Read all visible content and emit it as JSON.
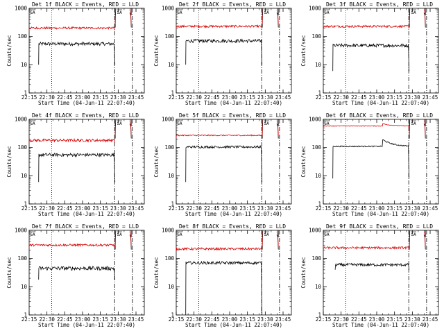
{
  "common": {
    "xlabel": "Start Time (04-Jun-11 22:07:40)",
    "ylabel": "Counts/sec",
    "xticks": [
      "22:15",
      "22:30",
      "22:45",
      "23:00",
      "23:15",
      "23:30",
      "23:45"
    ],
    "yticks": [
      "1",
      "10",
      "100",
      "1000"
    ],
    "marker_label": "SA",
    "colors": {
      "events": "#000000",
      "lld": "#d40000",
      "axes": "#000000"
    }
  },
  "chart_data": [
    {
      "type": "line",
      "title": "Det 1f BLACK = Events, RED = LLD",
      "x_range_min": [
        8,
        105
      ],
      "ylim": [
        1,
        1000
      ],
      "yscale": "log",
      "dotted_x_min": 27,
      "dashed_x_min": [
        80,
        95
      ],
      "solid_x_min": [
        80.5,
        94
      ],
      "series": [
        {
          "name": "Events",
          "start_min": 16,
          "end_min": 80,
          "level": 55,
          "drop": 10,
          "noise": 0.06
        },
        {
          "name": "LLD",
          "start_min": 8,
          "end_min": 80,
          "level": 200,
          "drop": 170,
          "noise": 0.04
        }
      ]
    },
    {
      "type": "line",
      "title": "Det 2f BLACK = Events, RED = LLD",
      "x_range_min": [
        8,
        105
      ],
      "ylim": [
        1,
        1000
      ],
      "yscale": "log",
      "dotted_x_min": 27,
      "dashed_x_min": [
        80,
        95
      ],
      "solid_x_min": [
        80.5,
        94
      ],
      "series": [
        {
          "name": "Events",
          "start_min": 16,
          "end_min": 80,
          "level": 70,
          "drop": 10,
          "noise": 0.06
        },
        {
          "name": "LLD",
          "start_min": 8,
          "end_min": 80,
          "level": 230,
          "drop": 190,
          "noise": 0.04
        }
      ]
    },
    {
      "type": "line",
      "title": "Det 3f BLACK = Events, RED = LLD",
      "x_range_min": [
        8,
        105
      ],
      "ylim": [
        1,
        1000
      ],
      "yscale": "log",
      "dotted_x_min": 27,
      "dashed_x_min": [
        80,
        95
      ],
      "solid_x_min": [
        80.5,
        94
      ],
      "series": [
        {
          "name": "Events",
          "start_min": 16,
          "end_min": 80,
          "level": 48,
          "drop": 6,
          "noise": 0.06
        },
        {
          "name": "LLD",
          "start_min": 8,
          "end_min": 80,
          "level": 230,
          "drop": 190,
          "noise": 0.04
        }
      ]
    },
    {
      "type": "line",
      "title": "Det 4f BLACK = Events, RED = LLD",
      "x_range_min": [
        8,
        105
      ],
      "ylim": [
        1,
        1000
      ],
      "yscale": "log",
      "dotted_x_min": 27,
      "dashed_x_min": [
        80,
        95
      ],
      "solid_x_min": [
        80.5,
        94
      ],
      "series": [
        {
          "name": "Events",
          "start_min": 16,
          "end_min": 80,
          "level": 55,
          "drop": 6,
          "noise": 0.06
        },
        {
          "name": "LLD",
          "start_min": 8,
          "end_min": 80,
          "level": 180,
          "drop": 150,
          "noise": 0.05
        }
      ]
    },
    {
      "type": "line",
      "title": "Det 5f BLACK = Events, RED = LLD",
      "x_range_min": [
        8,
        105
      ],
      "ylim": [
        1,
        1000
      ],
      "yscale": "log",
      "dotted_x_min": 27,
      "dashed_x_min": [
        80,
        95
      ],
      "solid_x_min": [
        80.5,
        94
      ],
      "series": [
        {
          "name": "Events",
          "start_min": 16,
          "end_min": 80,
          "level": 105,
          "drop": 6,
          "noise": 0.04
        },
        {
          "name": "LLD",
          "start_min": 8,
          "end_min": 80,
          "level": 270,
          "drop": 230,
          "noise": 0.02
        }
      ]
    },
    {
      "type": "line",
      "title": "Det 6f BLACK = Events, RED = LLD",
      "x_range_min": [
        8,
        105
      ],
      "ylim": [
        1,
        1000
      ],
      "yscale": "log",
      "dotted_x_min": 27,
      "dashed_x_min": [
        80,
        95
      ],
      "solid_x_min": [
        80.5,
        94
      ],
      "series": [
        {
          "name": "Events",
          "start_min": 16,
          "end_min": 80,
          "level": 110,
          "drop": 8,
          "noise": 0.02,
          "bump_min": 58,
          "bump_peak": 190
        },
        {
          "name": "LLD",
          "start_min": 8,
          "end_min": 80,
          "level": 580,
          "drop": 440,
          "noise": 0.01,
          "bump_min": 58,
          "bump_peak": 700
        }
      ]
    },
    {
      "type": "line",
      "title": "Det 7f BLACK = Events, RED = LLD",
      "x_range_min": [
        8,
        105
      ],
      "ylim": [
        1,
        1000
      ],
      "yscale": "log",
      "dotted_x_min": 27,
      "dashed_x_min": [
        80,
        95
      ],
      "solid_x_min": [
        80.5,
        94
      ],
      "series": [
        {
          "name": "Events",
          "start_min": 16,
          "end_min": 80,
          "level": 45,
          "drop": 18,
          "noise": 0.07
        },
        {
          "name": "LLD",
          "start_min": 8,
          "end_min": 80,
          "level": 300,
          "drop": 250,
          "noise": 0.04
        }
      ]
    },
    {
      "type": "line",
      "title": "Det 8f BLACK = Events, RED = LLD",
      "x_range_min": [
        8,
        105
      ],
      "ylim": [
        1,
        1000
      ],
      "yscale": "log",
      "dotted_x_min": 27,
      "dashed_x_min": [
        80,
        95
      ],
      "solid_x_min": [
        80.5,
        94
      ],
      "series": [
        {
          "name": "Events",
          "start_min": 16,
          "end_min": 80,
          "level": 70,
          "drop": 1,
          "noise": 0.05
        },
        {
          "name": "LLD",
          "start_min": 8,
          "end_min": 80,
          "level": 220,
          "drop": 180,
          "noise": 0.04
        }
      ]
    },
    {
      "type": "line",
      "title": "Det 9f BLACK = Events, RED = LLD",
      "x_range_min": [
        8,
        105
      ],
      "ylim": [
        1,
        1000
      ],
      "yscale": "log",
      "dotted_x_min": 27,
      "dashed_x_min": [
        80,
        95
      ],
      "solid_x_min": [
        80.5,
        94
      ],
      "series": [
        {
          "name": "Events",
          "start_min": 18,
          "end_min": 80,
          "level": 60,
          "drop": 40,
          "noise": 0.05
        },
        {
          "name": "LLD",
          "start_min": 8,
          "end_min": 80,
          "level": 240,
          "drop": 200,
          "noise": 0.04
        }
      ]
    }
  ]
}
